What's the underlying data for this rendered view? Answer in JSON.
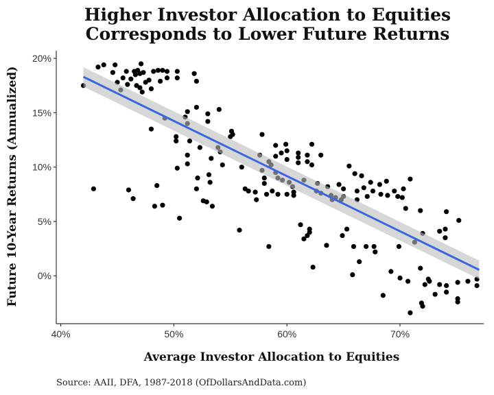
{
  "chart_data": {
    "type": "scatter",
    "title": [
      "Higher Investor Allocation to Equities",
      "Corresponds to Lower Future Returns"
    ],
    "xlabel": "Average Investor Allocation to Equities",
    "ylabel": "Future 10-Year Returns (Annualized)",
    "caption": "Source: AAII, DFA, 1987-2018 (OfDollarsAndData.com)",
    "xlim": [
      39.6,
      77.4
    ],
    "ylim": [
      -4.4,
      20.7
    ],
    "x_ticks": [
      {
        "value": 40,
        "label": "40%"
      },
      {
        "value": 50,
        "label": "50%"
      },
      {
        "value": 60,
        "label": "60%"
      },
      {
        "value": 70,
        "label": "70%"
      }
    ],
    "y_ticks": [
      {
        "value": 0,
        "label": "0%"
      },
      {
        "value": 5,
        "label": "5%"
      },
      {
        "value": 10,
        "label": "10%"
      },
      {
        "value": 15,
        "label": "15%"
      },
      {
        "value": 20,
        "label": "20%"
      }
    ],
    "grid": false,
    "point_color": "#000000",
    "fit": {
      "type": "linear",
      "x": [
        42,
        77
      ],
      "y": [
        18.3,
        0.55
      ],
      "ci_upper": [
        19.2,
        1.4
      ],
      "ci_lower": [
        17.4,
        -0.3
      ],
      "line_color": "#3b66e0",
      "ribbon_color": "#bdbdbd"
    },
    "points": [
      [
        42.0,
        17.5
      ],
      [
        42.9,
        8.0
      ],
      [
        43.3,
        19.2
      ],
      [
        43.8,
        19.4
      ],
      [
        44.6,
        18.7
      ],
      [
        44.8,
        19.4
      ],
      [
        45.0,
        17.8
      ],
      [
        45.3,
        17.1
      ],
      [
        45.5,
        18.2
      ],
      [
        45.8,
        18.8
      ],
      [
        45.9,
        17.6
      ],
      [
        46.0,
        7.9
      ],
      [
        46.2,
        18.1
      ],
      [
        46.4,
        7.1
      ],
      [
        46.5,
        18.8
      ],
      [
        46.6,
        18.5
      ],
      [
        46.7,
        17.5
      ],
      [
        46.8,
        18.9
      ],
      [
        47.0,
        18.6
      ],
      [
        47.0,
        17.3
      ],
      [
        47.1,
        19.5
      ],
      [
        47.2,
        16.9
      ],
      [
        47.3,
        18.7
      ],
      [
        47.5,
        17.8
      ],
      [
        47.8,
        18.0
      ],
      [
        48.0,
        17.2
      ],
      [
        48.0,
        13.5
      ],
      [
        48.2,
        18.8
      ],
      [
        48.3,
        6.4
      ],
      [
        48.5,
        8.3
      ],
      [
        48.6,
        18.9
      ],
      [
        48.8,
        17.9
      ],
      [
        49.0,
        18.9
      ],
      [
        49.0,
        6.5
      ],
      [
        49.2,
        14.5
      ],
      [
        49.4,
        18.8
      ],
      [
        49.4,
        18.2
      ],
      [
        50.3,
        18.8
      ],
      [
        50.3,
        18.2
      ],
      [
        50.2,
        12.8
      ],
      [
        50.2,
        12.4
      ],
      [
        50.3,
        9.9
      ],
      [
        50.5,
        5.3
      ],
      [
        51.0,
        14.6
      ],
      [
        51.2,
        15.1
      ],
      [
        51.2,
        14.0
      ],
      [
        51.2,
        11.1
      ],
      [
        51.2,
        10.3
      ],
      [
        51.4,
        12.4
      ],
      [
        51.8,
        18.6
      ],
      [
        52.0,
        17.9
      ],
      [
        52.0,
        8.0
      ],
      [
        52.0,
        15.5
      ],
      [
        52.1,
        9.0
      ],
      [
        52.3,
        11.8
      ],
      [
        52.6,
        6.9
      ],
      [
        52.9,
        6.8
      ],
      [
        53.0,
        14.2
      ],
      [
        53.0,
        14.9
      ],
      [
        53.1,
        9.3
      ],
      [
        53.2,
        8.6
      ],
      [
        53.3,
        10.8
      ],
      [
        53.4,
        6.4
      ],
      [
        53.9,
        11.8
      ],
      [
        54.0,
        15.3
      ],
      [
        54.1,
        11.4
      ],
      [
        54.3,
        10.2
      ],
      [
        55.0,
        12.8
      ],
      [
        55.1,
        13.3
      ],
      [
        55.2,
        13.0
      ],
      [
        55.8,
        4.2
      ],
      [
        56.0,
        10.0
      ],
      [
        56.3,
        8.0
      ],
      [
        56.6,
        7.8
      ],
      [
        57.2,
        7.7
      ],
      [
        57.3,
        7.0
      ],
      [
        57.6,
        11.1
      ],
      [
        57.8,
        13.0
      ],
      [
        57.8,
        9.7
      ],
      [
        58.0,
        9.0
      ],
      [
        58.0,
        8.5
      ],
      [
        58.2,
        7.5
      ],
      [
        58.4,
        2.7
      ],
      [
        58.4,
        10.5
      ],
      [
        58.6,
        10.2
      ],
      [
        58.7,
        7.8
      ],
      [
        59.0,
        12.0
      ],
      [
        59.0,
        11.0
      ],
      [
        59.0,
        9.5
      ],
      [
        59.2,
        9.0
      ],
      [
        59.2,
        7.5
      ],
      [
        59.5,
        11.3
      ],
      [
        59.6,
        8.8
      ],
      [
        59.9,
        12.1
      ],
      [
        60.0,
        11.5
      ],
      [
        60.0,
        10.7
      ],
      [
        60.0,
        7.5
      ],
      [
        60.2,
        8.6
      ],
      [
        60.5,
        8.2
      ],
      [
        60.6,
        7.4
      ],
      [
        60.6,
        7.7
      ],
      [
        61.0,
        10.9
      ],
      [
        61.0,
        11.3
      ],
      [
        61.0,
        10.4
      ],
      [
        61.2,
        4.7
      ],
      [
        61.5,
        3.4
      ],
      [
        61.5,
        8.8
      ],
      [
        61.8,
        10.5
      ],
      [
        61.8,
        11.1
      ],
      [
        61.8,
        3.7
      ],
      [
        62.0,
        4.3
      ],
      [
        62.0,
        4.0
      ],
      [
        62.2,
        12.1
      ],
      [
        62.2,
        10.2
      ],
      [
        62.3,
        0.8
      ],
      [
        62.6,
        7.8
      ],
      [
        62.7,
        8.5
      ],
      [
        63.0,
        11.1
      ],
      [
        63.0,
        7.6
      ],
      [
        63.5,
        2.8
      ],
      [
        63.6,
        8.2
      ],
      [
        63.9,
        7.4
      ],
      [
        64.0,
        7.0
      ],
      [
        64.3,
        7.2
      ],
      [
        64.6,
        8.4
      ],
      [
        64.8,
        7.0
      ],
      [
        64.9,
        3.7
      ],
      [
        65.0,
        8.0
      ],
      [
        65.0,
        7.3
      ],
      [
        65.3,
        4.3
      ],
      [
        65.5,
        10.1
      ],
      [
        65.8,
        0.1
      ],
      [
        65.9,
        2.7
      ],
      [
        66.0,
        9.4
      ],
      [
        66.2,
        7.8
      ],
      [
        66.2,
        7.0
      ],
      [
        66.4,
        1.3
      ],
      [
        66.6,
        9.2
      ],
      [
        66.8,
        8.1
      ],
      [
        67.0,
        2.7
      ],
      [
        67.1,
        7.3
      ],
      [
        67.4,
        8.6
      ],
      [
        67.6,
        7.8
      ],
      [
        67.7,
        2.7
      ],
      [
        67.8,
        2.2
      ],
      [
        68.2,
        8.4
      ],
      [
        68.3,
        7.5
      ],
      [
        68.5,
        -1.8
      ],
      [
        68.8,
        8.7
      ],
      [
        68.9,
        7.4
      ],
      [
        69.2,
        0.4
      ],
      [
        69.5,
        7.8
      ],
      [
        69.8,
        7.3
      ],
      [
        69.9,
        2.7
      ],
      [
        70.0,
        -0.2
      ],
      [
        70.2,
        7.2
      ],
      [
        70.3,
        8.0
      ],
      [
        70.5,
        6.2
      ],
      [
        70.7,
        -0.5
      ],
      [
        70.9,
        -3.4
      ],
      [
        70.9,
        8.9
      ],
      [
        71.3,
        3.1
      ],
      [
        71.8,
        0.7
      ],
      [
        71.8,
        6.0
      ],
      [
        71.9,
        -2.5
      ],
      [
        72.0,
        -2.8
      ],
      [
        72.0,
        3.9
      ],
      [
        72.2,
        -0.8
      ],
      [
        72.5,
        -0.3
      ],
      [
        72.6,
        -0.5
      ],
      [
        73.1,
        -1.7
      ],
      [
        73.5,
        -0.8
      ],
      [
        73.5,
        4.1
      ],
      [
        74.1,
        -1.5
      ],
      [
        74.1,
        -0.9
      ],
      [
        74.0,
        4.3
      ],
      [
        74.0,
        3.5
      ],
      [
        74.1,
        5.9
      ],
      [
        75.1,
        -0.6
      ],
      [
        75.1,
        -2.1
      ],
      [
        75.1,
        -2.4
      ],
      [
        75.2,
        5.1
      ],
      [
        76.0,
        -0.5
      ],
      [
        76.8,
        -0.3
      ],
      [
        76.8,
        -0.9
      ]
    ]
  }
}
